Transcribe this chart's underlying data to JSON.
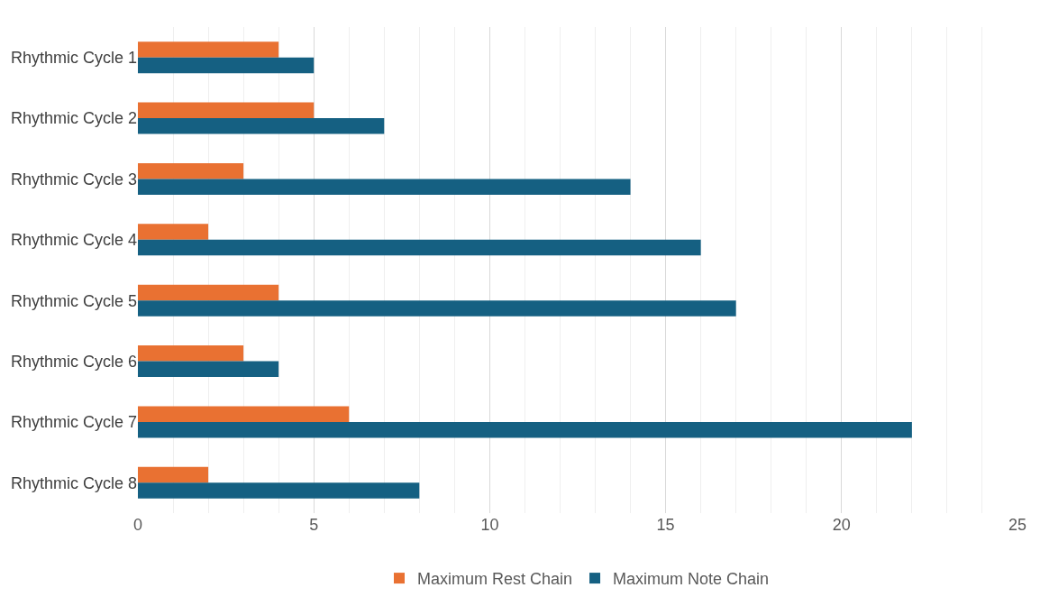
{
  "chart_data": {
    "type": "bar",
    "orientation": "horizontal",
    "categories": [
      "Rhythmic Cycle 1",
      "Rhythmic Cycle 2",
      "Rhythmic Cycle 3",
      "Rhythmic Cycle 4",
      "Rhythmic Cycle 5",
      "Rhythmic Cycle 6",
      "Rhythmic Cycle 7",
      "Rhythmic Cycle 8"
    ],
    "series": [
      {
        "name": "Maximum Rest Chain",
        "color": "#e97132",
        "values": [
          4,
          5,
          3,
          2,
          4,
          3,
          6,
          2
        ]
      },
      {
        "name": "Maximum Note Chain",
        "color": "#156082",
        "values": [
          5,
          7,
          14,
          16,
          17,
          4,
          22,
          8
        ]
      }
    ],
    "xlim": [
      0,
      25
    ],
    "xticks": [
      0,
      5,
      10,
      15,
      20,
      25
    ],
    "grid": "x",
    "legend": "bottom"
  }
}
